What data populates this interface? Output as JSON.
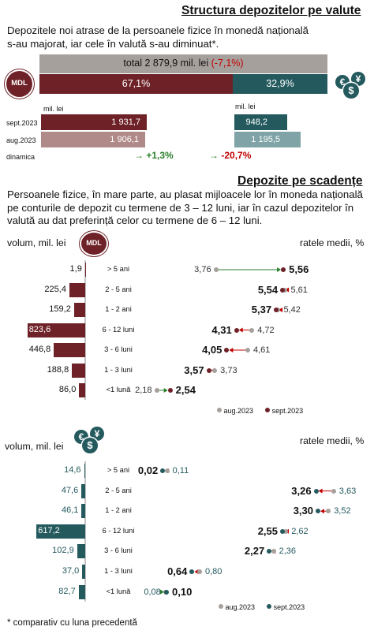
{
  "colors": {
    "wine": "#6e2228",
    "pink": "#b08a88",
    "teal": "#245a5e",
    "teal_light": "#7fa3a6",
    "grey": "#a6a09c",
    "green": "#2a7f2a",
    "red": "#c00000"
  },
  "top": {
    "title": "Structura depozitelor pe valute",
    "intro_line1": "Depozitele noi atrase de la persoanele fizice în monedă națională",
    "intro_line2": "s-au majorat, iar cele în valută s-au diminuat*.",
    "total_text": "total 2 879,9 mil. lei",
    "total_change": "(-7,1%)",
    "mdl_share": "67,1%",
    "fx_share": "32,9%",
    "mdl_badge": "MDL",
    "unit_left": "mil. lei",
    "unit_right": "mil. lei",
    "rows": [
      {
        "label": "sept.2023",
        "mdl": "1 931,7",
        "fx": "948,2"
      },
      {
        "label": "aug.2023",
        "mdl": "1 906,1",
        "fx": "1 195,5"
      }
    ],
    "dyn_label": "dinamica",
    "dyn_mdl": "+1,3%",
    "dyn_fx": "-20,7%",
    "arrow": "→"
  },
  "mid": {
    "title": "Depozite pe scadențe",
    "p1": "Persoanele fizice, în mare parte, au plasat mijloacele lor în moneda națională",
    "p2": "pe conturile de depozit cu termene de 3 – 12 luni, iar în cazul depozitelor în",
    "p3": "valută au dat preferință celor cu termene de 6 – 12 luni."
  },
  "chart_data": [
    {
      "type": "bar",
      "currency_badge": "MDL",
      "ylabel_left": "volum, mil. lei",
      "ylabel_right": "ratele medii, %",
      "categories": [
        "> 5 ani",
        "2 - 5 ani",
        "1 - 2 ani",
        "6 - 12 luni",
        "3 - 6 luni",
        "1 - 3 luni",
        "<1 lună"
      ],
      "volume": [
        1.9,
        225.4,
        159.2,
        823.6,
        446.8,
        188.8,
        86.0
      ],
      "volume_labels": [
        "1,9",
        "225,4",
        "159,2",
        "823,6",
        "446,8",
        "188,8",
        "86,0"
      ],
      "rate_aug": [
        3.76,
        5.61,
        5.42,
        4.72,
        4.61,
        3.73,
        2.18
      ],
      "rate_aug_labels": [
        "3,76",
        "5,61",
        "5,42",
        "4,72",
        "4,61",
        "3,73",
        "2,18"
      ],
      "rate_sep": [
        5.56,
        5.54,
        5.37,
        4.31,
        4.05,
        3.57,
        2.54
      ],
      "rate_sep_labels": [
        "5,56",
        "5,54",
        "5,37",
        "4,31",
        "4,05",
        "3,57",
        "2,54"
      ],
      "legend": [
        "aug.2023",
        "sept.2023"
      ]
    },
    {
      "type": "bar",
      "currency_badge": "$ ¥ €",
      "ylabel_left": "volum, mil. lei",
      "ylabel_right": "ratele medii, %",
      "categories": [
        "> 5 ani",
        "2 - 5 ani",
        "1 - 2 ani",
        "6 - 12 luni",
        "3 - 6 luni",
        "1 - 3 luni",
        "<1 lună"
      ],
      "volume": [
        14.6,
        47.6,
        46.1,
        617.2,
        102.9,
        37.0,
        82.7
      ],
      "volume_labels": [
        "14,6",
        "47,6",
        "46,1",
        "617,2",
        "102,9",
        "37,0",
        "82,7"
      ],
      "rate_aug": [
        0.11,
        3.63,
        3.52,
        2.62,
        2.36,
        0.8,
        0.08
      ],
      "rate_aug_labels": [
        "0,11",
        "3,63",
        "3,52",
        "2,62",
        "2,36",
        "0,80",
        "0,08"
      ],
      "rate_sep": [
        0.02,
        3.26,
        3.3,
        2.55,
        2.27,
        0.64,
        0.1
      ],
      "rate_sep_labels": [
        "0,02",
        "3,26",
        "3,30",
        "2,55",
        "2,27",
        "0,64",
        "0,10"
      ],
      "legend": [
        "aug.2023",
        "sept.2023"
      ]
    }
  ],
  "footnote": "* comparativ cu luna precedentă"
}
